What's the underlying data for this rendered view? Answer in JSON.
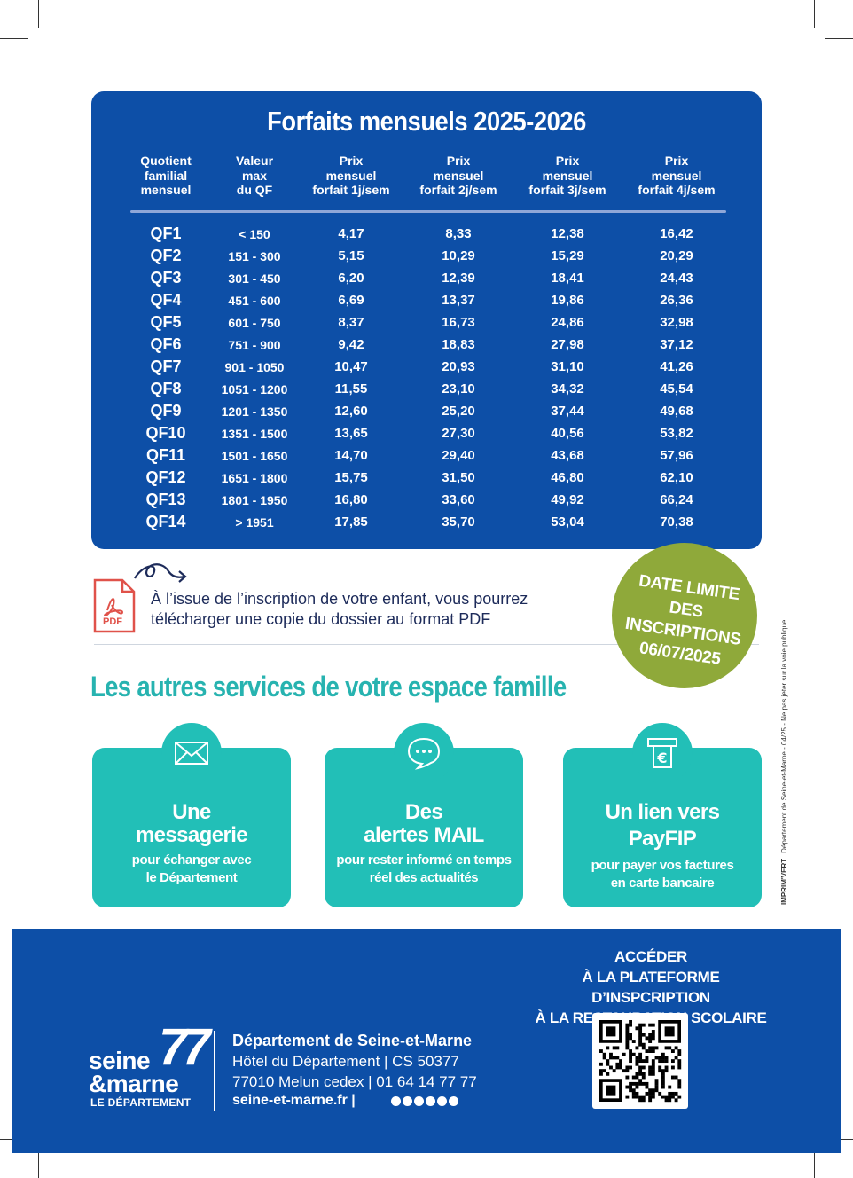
{
  "tariff": {
    "title": "Forfaits mensuels 2025-2026",
    "headers": [
      [
        "Quotient",
        "familial",
        "mensuel"
      ],
      [
        "Valeur",
        "max",
        "du QF"
      ],
      [
        "Prix",
        "mensuel",
        "forfait 1j/sem"
      ],
      [
        "Prix",
        "mensuel",
        "forfait 2j/sem"
      ],
      [
        "Prix",
        "mensuel",
        "forfait 3j/sem"
      ],
      [
        "Prix",
        "mensuel",
        "forfait 4j/sem"
      ]
    ],
    "rows": [
      [
        "QF1",
        "< 150",
        "4,17",
        "8,33",
        "12,38",
        "16,42"
      ],
      [
        "QF2",
        "151 - 300",
        "5,15",
        "10,29",
        "15,29",
        "20,29"
      ],
      [
        "QF3",
        "301 - 450",
        "6,20",
        "12,39",
        "18,41",
        "24,43"
      ],
      [
        "QF4",
        "451 - 600",
        "6,69",
        "13,37",
        "19,86",
        "26,36"
      ],
      [
        "QF5",
        "601 - 750",
        "8,37",
        "16,73",
        "24,86",
        "32,98"
      ],
      [
        "QF6",
        "751 - 900",
        "9,42",
        "18,83",
        "27,98",
        "37,12"
      ],
      [
        "QF7",
        "901 - 1050",
        "10,47",
        "20,93",
        "31,10",
        "41,26"
      ],
      [
        "QF8",
        "1051 - 1200",
        "11,55",
        "23,10",
        "34,32",
        "45,54"
      ],
      [
        "QF9",
        "1201 - 1350",
        "12,60",
        "25,20",
        "37,44",
        "49,68"
      ],
      [
        "QF10",
        "1351 - 1500",
        "13,65",
        "27,30",
        "40,56",
        "53,82"
      ],
      [
        "QF11",
        "1501 - 1650",
        "14,70",
        "29,40",
        "43,68",
        "57,96"
      ],
      [
        "QF12",
        "1651 - 1800",
        "15,75",
        "31,50",
        "46,80",
        "62,10"
      ],
      [
        "QF13",
        "1801 - 1950",
        "16,80",
        "33,60",
        "49,92",
        "66,24"
      ],
      [
        "QF14",
        "> 1951",
        "17,85",
        "35,70",
        "53,04",
        "70,38"
      ]
    ]
  },
  "pdf_notice": {
    "icon": "pdf-file-icon",
    "icon_label": "PDF",
    "line1": "À l’issue de l’inscription de votre enfant, vous pourrez",
    "line2": "télécharger une copie du dossier au format PDF"
  },
  "deadline": {
    "line1": "DATE LIMITE",
    "line2": "DES INSCRIPTIONS",
    "line3": "06/07/2025"
  },
  "side_text": "Département de Seine-et-Marne - 04/25 - Ne pas jeter sur la voie publique",
  "side_brand": "IMPRIM'VERT",
  "services": {
    "title": "Les autres services de votre espace famille",
    "cards": [
      {
        "icon": "envelope-icon",
        "title1": "Une",
        "title2": "messagerie",
        "sub1": "pour échanger avec",
        "sub2": "le Département"
      },
      {
        "icon": "chat-bubble-icon",
        "title1": "Des",
        "title2": "alertes MAIL",
        "sub1": "pour rester informé en temps",
        "sub2": "réel des actualités"
      },
      {
        "icon": "euro-payment-icon",
        "title1": "Un lien vers",
        "title2": "PayFIP",
        "sub1": "pour payer vos factures",
        "sub2": "en carte bancaire"
      }
    ]
  },
  "footer": {
    "access1": "ACCÉDER",
    "access2": "À LA PLATEFORME D’INSPCRIPTION",
    "access3": "À LA RESTAURATION SCOLAIRE",
    "logo1": "seine",
    "logo2": "&marne",
    "logo_num": "77",
    "logo_sub": "LE DÉPARTEMENT",
    "dep_name": "Département de Seine-et-Marne",
    "address1": "Hôtel du Département | CS 50377",
    "address2": "77010 Melun cedex | 01 64 14 77 77",
    "url": "seine-et-marne.fr",
    "url_sep": "|"
  },
  "colors": {
    "blue": "#0d4fa7",
    "teal": "#22bfb7",
    "green": "#8fa93a"
  }
}
